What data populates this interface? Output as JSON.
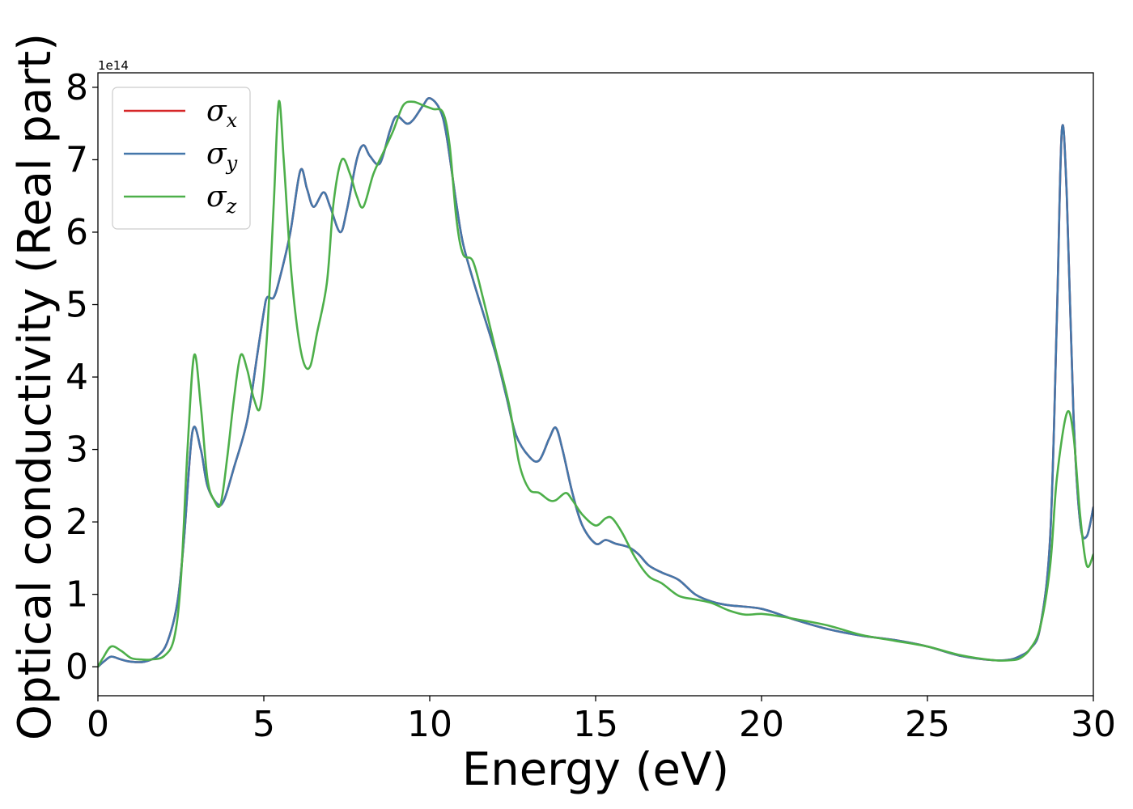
{
  "chart_data": {
    "type": "line",
    "xlabel": "Energy (eV)",
    "ylabel": "Optical conductivity (Real part)",
    "y_offset_label": "1e14",
    "xlim": [
      0,
      30
    ],
    "ylim": [
      -0.4,
      8.2
    ],
    "x_ticks": [
      0,
      5,
      10,
      15,
      20,
      25,
      30
    ],
    "x_tick_labels": [
      "0",
      "5",
      "10",
      "15",
      "20",
      "25",
      "30"
    ],
    "y_ticks": [
      0,
      1,
      2,
      3,
      4,
      5,
      6,
      7,
      8
    ],
    "y_tick_labels": [
      "0",
      "1",
      "2",
      "3",
      "4",
      "5",
      "6",
      "7",
      "8"
    ],
    "legend_position": "upper-left",
    "grid": false,
    "series": [
      {
        "name": "σx",
        "base": "σ",
        "sub": "x",
        "color": "#d62728",
        "x": [
          0,
          0.2,
          0.4,
          0.7,
          1.0,
          1.4,
          1.8,
          2.1,
          2.4,
          2.6,
          2.85,
          3.1,
          3.3,
          3.6,
          3.8,
          4.1,
          4.5,
          4.8,
          5.0,
          5.1,
          5.3,
          5.5,
          5.8,
          6.1,
          6.3,
          6.5,
          6.8,
          7.0,
          7.3,
          7.5,
          7.8,
          8.0,
          8.2,
          8.5,
          8.8,
          9.0,
          9.3,
          9.5,
          9.8,
          10.0,
          10.3,
          10.5,
          10.8,
          11.0,
          11.3,
          11.6,
          12.0,
          12.3,
          12.6,
          13.0,
          13.3,
          13.6,
          13.8,
          14.0,
          14.3,
          14.6,
          15.0,
          15.3,
          15.6,
          16.0,
          16.3,
          16.6,
          17.0,
          17.5,
          18.0,
          18.5,
          19.0,
          20.0,
          21.0,
          22.0,
          23.0,
          24.0,
          25.0,
          26.0,
          27.0,
          27.5,
          27.8,
          28.1,
          28.4,
          28.7,
          28.9,
          29.05,
          29.2,
          29.4,
          29.6,
          29.8,
          30.0
        ],
        "y": [
          0,
          0.08,
          0.14,
          0.1,
          0.07,
          0.07,
          0.15,
          0.35,
          0.9,
          1.8,
          3.25,
          3.0,
          2.5,
          2.25,
          2.3,
          2.75,
          3.4,
          4.3,
          4.9,
          5.1,
          5.1,
          5.4,
          6.0,
          6.85,
          6.6,
          6.35,
          6.55,
          6.35,
          6.0,
          6.3,
          7.0,
          7.2,
          7.05,
          6.95,
          7.4,
          7.6,
          7.5,
          7.55,
          7.75,
          7.85,
          7.7,
          7.35,
          6.4,
          5.85,
          5.35,
          4.9,
          4.3,
          3.75,
          3.2,
          2.9,
          2.85,
          3.15,
          3.3,
          3.0,
          2.4,
          1.95,
          1.7,
          1.75,
          1.7,
          1.65,
          1.55,
          1.4,
          1.3,
          1.2,
          1.0,
          0.9,
          0.85,
          0.8,
          0.65,
          0.52,
          0.43,
          0.37,
          0.28,
          0.15,
          0.09,
          0.1,
          0.15,
          0.25,
          0.55,
          1.8,
          4.8,
          7.4,
          6.5,
          3.5,
          2.0,
          1.8,
          2.2
        ]
      },
      {
        "name": "σy",
        "base": "σ",
        "sub": "y",
        "color": "#4477aa",
        "x": [
          0,
          0.2,
          0.4,
          0.7,
          1.0,
          1.4,
          1.8,
          2.1,
          2.4,
          2.6,
          2.85,
          3.1,
          3.3,
          3.6,
          3.8,
          4.1,
          4.5,
          4.8,
          5.0,
          5.1,
          5.3,
          5.5,
          5.8,
          6.1,
          6.3,
          6.5,
          6.8,
          7.0,
          7.3,
          7.5,
          7.8,
          8.0,
          8.2,
          8.5,
          8.8,
          9.0,
          9.3,
          9.5,
          9.8,
          10.0,
          10.3,
          10.5,
          10.8,
          11.0,
          11.3,
          11.6,
          12.0,
          12.3,
          12.6,
          13.0,
          13.3,
          13.6,
          13.8,
          14.0,
          14.3,
          14.6,
          15.0,
          15.3,
          15.6,
          16.0,
          16.3,
          16.6,
          17.0,
          17.5,
          18.0,
          18.5,
          19.0,
          20.0,
          21.0,
          22.0,
          23.0,
          24.0,
          25.0,
          26.0,
          27.0,
          27.5,
          27.8,
          28.1,
          28.4,
          28.7,
          28.9,
          29.05,
          29.2,
          29.4,
          29.6,
          29.8,
          30.0
        ],
        "y": [
          0,
          0.08,
          0.14,
          0.1,
          0.07,
          0.07,
          0.15,
          0.35,
          0.9,
          1.8,
          3.25,
          3.0,
          2.5,
          2.25,
          2.3,
          2.75,
          3.4,
          4.3,
          4.9,
          5.1,
          5.1,
          5.4,
          6.0,
          6.85,
          6.6,
          6.35,
          6.55,
          6.35,
          6.0,
          6.3,
          7.0,
          7.2,
          7.05,
          6.95,
          7.4,
          7.6,
          7.5,
          7.55,
          7.75,
          7.85,
          7.7,
          7.35,
          6.4,
          5.85,
          5.35,
          4.9,
          4.3,
          3.75,
          3.2,
          2.9,
          2.85,
          3.15,
          3.3,
          3.0,
          2.4,
          1.95,
          1.7,
          1.75,
          1.7,
          1.65,
          1.55,
          1.4,
          1.3,
          1.2,
          1.0,
          0.9,
          0.85,
          0.8,
          0.65,
          0.52,
          0.43,
          0.37,
          0.28,
          0.15,
          0.09,
          0.1,
          0.15,
          0.25,
          0.55,
          1.8,
          4.8,
          7.4,
          6.5,
          3.5,
          2.0,
          1.8,
          2.2
        ]
      },
      {
        "name": "σz",
        "base": "σ",
        "sub": "z",
        "color": "#4daf4a",
        "x": [
          0,
          0.15,
          0.4,
          0.7,
          1.0,
          1.3,
          1.6,
          2.0,
          2.3,
          2.5,
          2.7,
          2.9,
          3.1,
          3.3,
          3.5,
          3.7,
          3.9,
          4.1,
          4.3,
          4.5,
          4.7,
          4.9,
          5.1,
          5.3,
          5.45,
          5.6,
          5.8,
          6.0,
          6.2,
          6.4,
          6.6,
          6.9,
          7.1,
          7.35,
          7.6,
          7.8,
          8.0,
          8.3,
          8.6,
          8.9,
          9.2,
          9.5,
          9.8,
          10.1,
          10.4,
          10.6,
          10.8,
          11.0,
          11.3,
          11.6,
          12.0,
          12.4,
          12.7,
          13.0,
          13.3,
          13.6,
          13.8,
          14.1,
          14.3,
          14.6,
          15.0,
          15.3,
          15.5,
          15.8,
          16.2,
          16.6,
          17.0,
          17.5,
          18.0,
          18.5,
          19.0,
          19.5,
          20.0,
          20.5,
          21.0,
          22.0,
          23.0,
          24.0,
          25.0,
          26.0,
          27.0,
          27.5,
          27.8,
          28.1,
          28.4,
          28.7,
          28.9,
          29.2,
          29.4,
          29.6,
          29.8,
          30.0
        ],
        "y": [
          0,
          0.12,
          0.28,
          0.22,
          0.12,
          0.1,
          0.1,
          0.15,
          0.4,
          1.2,
          3.0,
          4.3,
          3.6,
          2.6,
          2.3,
          2.25,
          2.9,
          3.7,
          4.3,
          4.1,
          3.7,
          3.6,
          4.6,
          6.4,
          7.8,
          7.0,
          5.6,
          4.7,
          4.2,
          4.15,
          4.6,
          5.3,
          6.4,
          7.0,
          6.8,
          6.5,
          6.35,
          6.8,
          7.1,
          7.4,
          7.75,
          7.8,
          7.75,
          7.7,
          7.65,
          7.2,
          6.2,
          5.7,
          5.6,
          5.1,
          4.35,
          3.6,
          2.8,
          2.45,
          2.4,
          2.3,
          2.3,
          2.4,
          2.3,
          2.1,
          1.95,
          2.05,
          2.05,
          1.85,
          1.5,
          1.25,
          1.15,
          0.98,
          0.93,
          0.88,
          0.78,
          0.72,
          0.73,
          0.7,
          0.66,
          0.57,
          0.44,
          0.36,
          0.28,
          0.16,
          0.09,
          0.09,
          0.12,
          0.25,
          0.55,
          1.4,
          2.6,
          3.5,
          3.2,
          2.1,
          1.4,
          1.55
        ]
      }
    ]
  }
}
